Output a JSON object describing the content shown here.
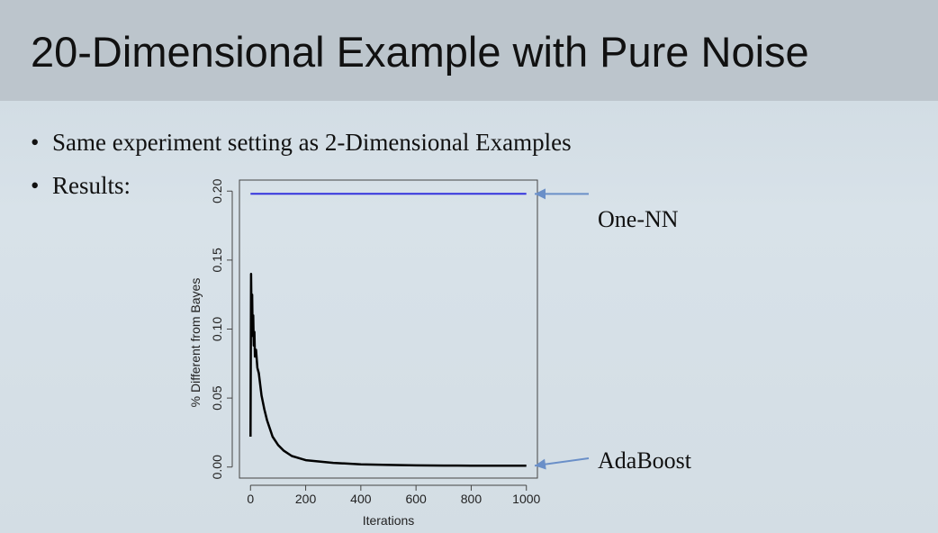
{
  "slide": {
    "title": "20-Dimensional Example with Pure Noise",
    "bullets": [
      "Same experiment setting as 2-Dimensional Examples",
      "Results:"
    ]
  },
  "annotations": {
    "one_nn": "One-NN",
    "adaboost": "AdaBoost"
  },
  "colors": {
    "one_nn_line": "#3333dd",
    "adaboost_line": "#000000",
    "arrow": "#6a8fc8"
  },
  "chart_data": {
    "type": "line",
    "title": "",
    "xlabel": "Iterations",
    "ylabel": "% Different from Bayes",
    "xlim": [
      -40,
      1040
    ],
    "ylim": [
      -0.008,
      0.208
    ],
    "xticks": [
      0,
      200,
      400,
      600,
      800,
      1000
    ],
    "yticks": [
      0.0,
      0.05,
      0.1,
      0.15,
      0.2
    ],
    "xtick_labels": [
      "0",
      "200",
      "400",
      "600",
      "800",
      "1000"
    ],
    "ytick_labels": [
      "0.00",
      "0.05",
      "0.10",
      "0.15",
      "0.20"
    ],
    "grid": false,
    "series": [
      {
        "name": "One-NN",
        "x": [
          0,
          1000
        ],
        "y": [
          0.198,
          0.198
        ]
      },
      {
        "name": "AdaBoost",
        "x": [
          0,
          2,
          4,
          6,
          8,
          10,
          12,
          14,
          16,
          20,
          25,
          30,
          40,
          50,
          60,
          70,
          80,
          100,
          120,
          150,
          200,
          250,
          300,
          400,
          500,
          600,
          700,
          800,
          900,
          1000
        ],
        "y": [
          0.022,
          0.14,
          0.105,
          0.125,
          0.095,
          0.11,
          0.088,
          0.098,
          0.08,
          0.085,
          0.072,
          0.068,
          0.052,
          0.042,
          0.034,
          0.028,
          0.022,
          0.016,
          0.012,
          0.008,
          0.005,
          0.004,
          0.003,
          0.002,
          0.0015,
          0.0012,
          0.0011,
          0.001,
          0.001,
          0.001
        ]
      }
    ]
  }
}
